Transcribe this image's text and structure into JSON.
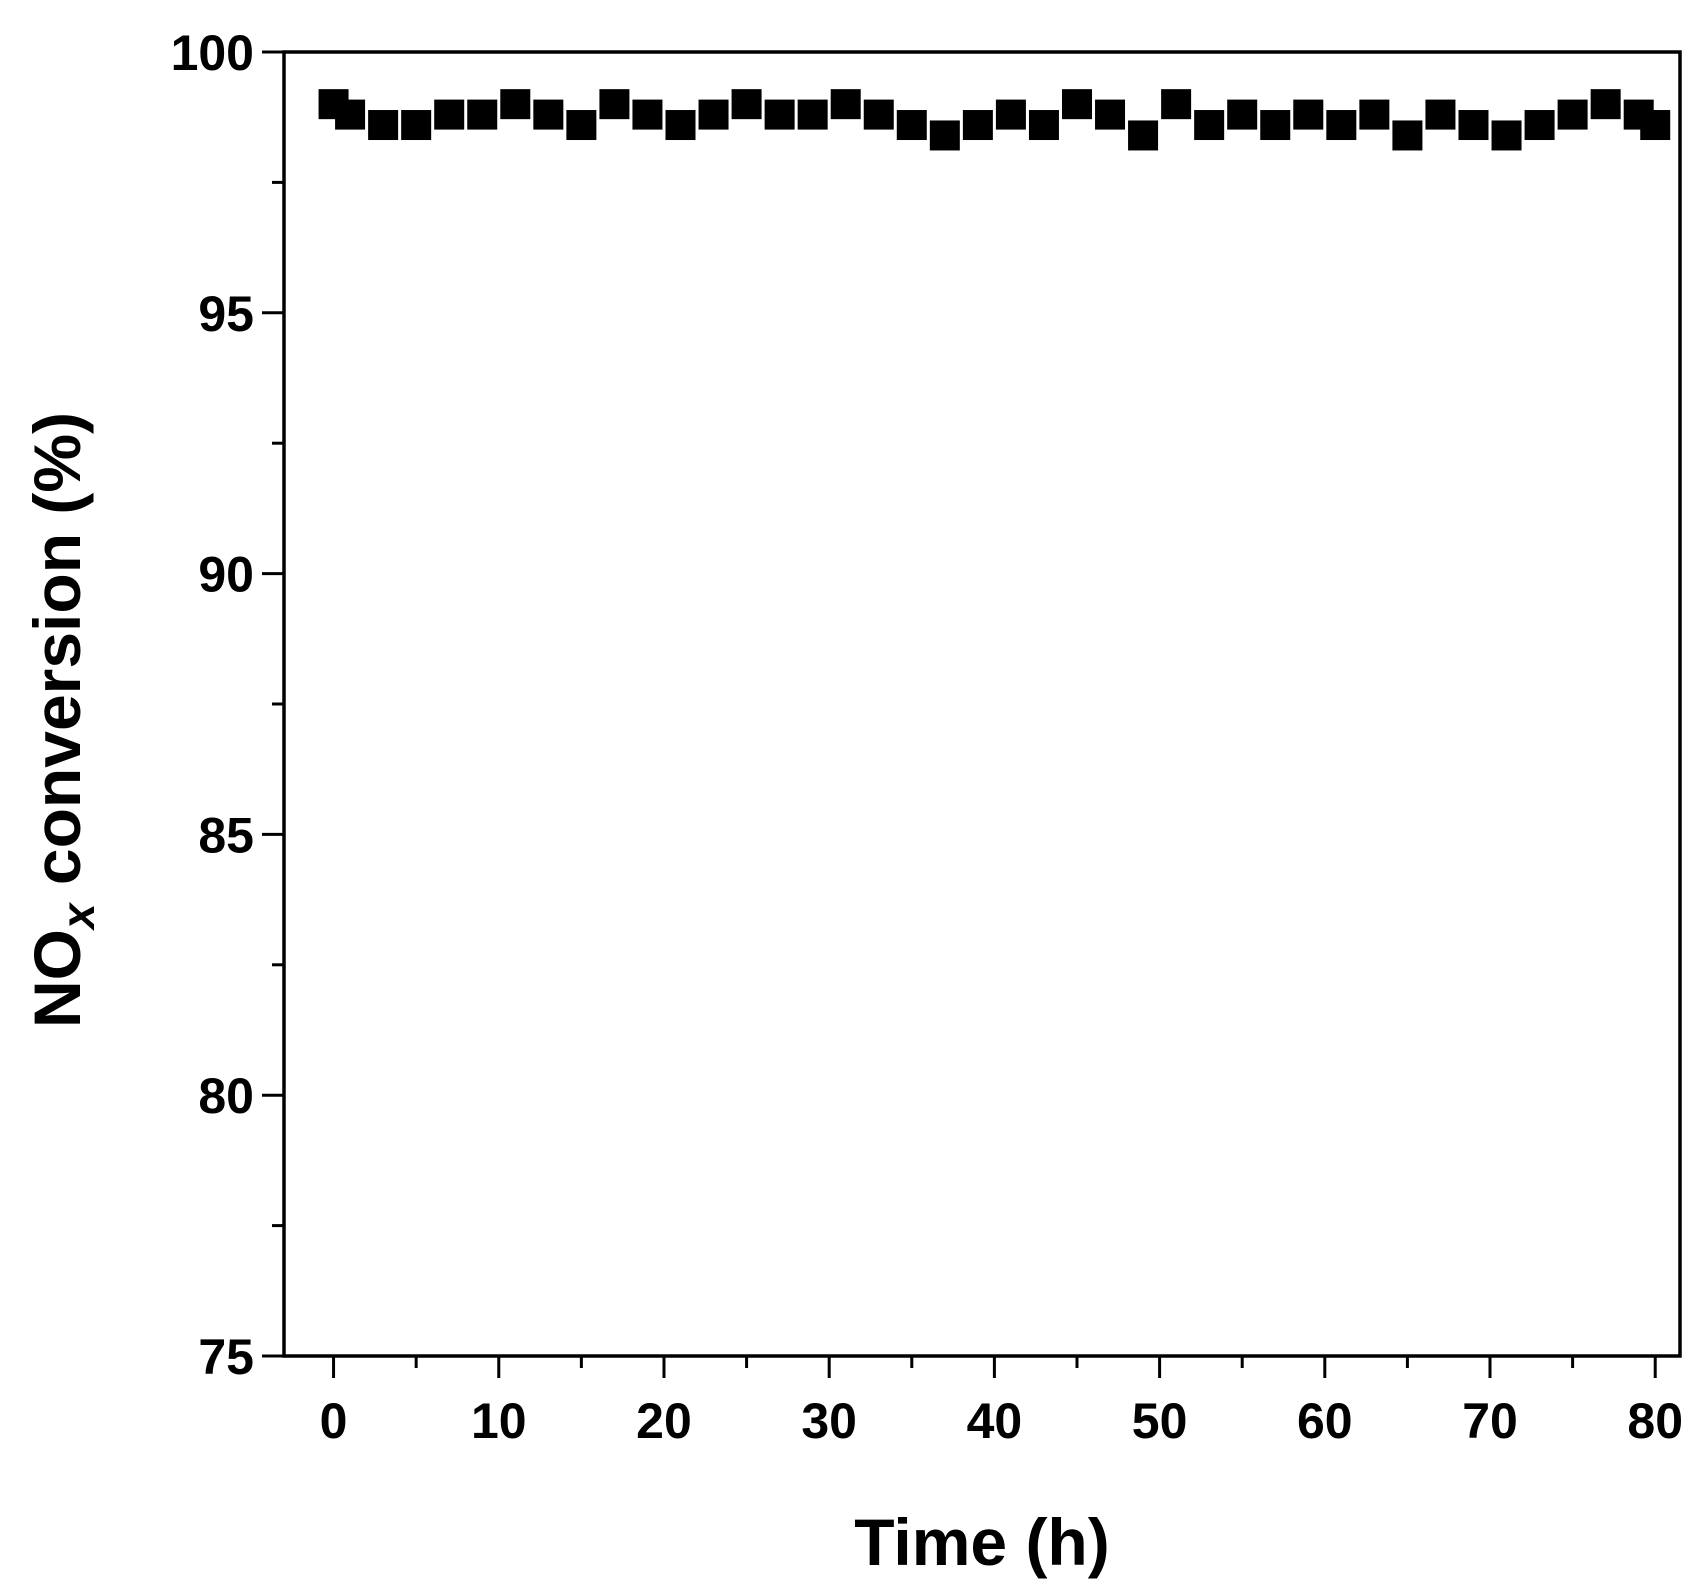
{
  "chart_data": {
    "type": "scatter",
    "title": "",
    "xlabel": "Time (h)",
    "ylabel": {
      "main": "NO",
      "subscript": "x",
      "suffix": " conversion (%)"
    },
    "xlim": [
      -3,
      81.5
    ],
    "ylim": [
      75,
      100
    ],
    "x_ticks": [
      0,
      10,
      20,
      30,
      40,
      50,
      60,
      70,
      80
    ],
    "y_ticks": [
      75,
      80,
      85,
      90,
      95,
      100
    ],
    "x_tick_labels": [
      "0",
      "10",
      "20",
      "30",
      "40",
      "50",
      "60",
      "70",
      "80"
    ],
    "y_tick_labels": [
      "75",
      "80",
      "85",
      "90",
      "95",
      "100"
    ],
    "x_minor_step": 5,
    "y_minor_step": 2.5,
    "grid": false,
    "legend": "none",
    "marker": "square",
    "marker_color": "#000000",
    "series": [
      {
        "x": [
          0,
          1,
          3,
          5,
          7,
          9,
          11,
          13,
          15,
          17,
          19,
          21,
          23,
          25,
          27,
          29,
          31,
          33,
          35,
          37,
          39,
          41,
          43,
          45,
          47,
          49,
          51,
          53,
          55,
          57,
          59,
          61,
          63,
          65,
          67,
          69,
          71,
          73,
          75,
          77,
          79,
          80
        ],
        "y": [
          99.0,
          98.8,
          98.6,
          98.6,
          98.8,
          98.8,
          99.0,
          98.8,
          98.6,
          99.0,
          98.8,
          98.6,
          98.8,
          99.0,
          98.8,
          98.8,
          99.0,
          98.8,
          98.6,
          98.4,
          98.6,
          98.8,
          98.6,
          99.0,
          98.8,
          98.4,
          99.0,
          98.6,
          98.8,
          98.6,
          98.8,
          98.6,
          98.8,
          98.4,
          98.8,
          98.6,
          98.4,
          98.6,
          98.8,
          99.0,
          98.8,
          98.6
        ]
      }
    ]
  }
}
